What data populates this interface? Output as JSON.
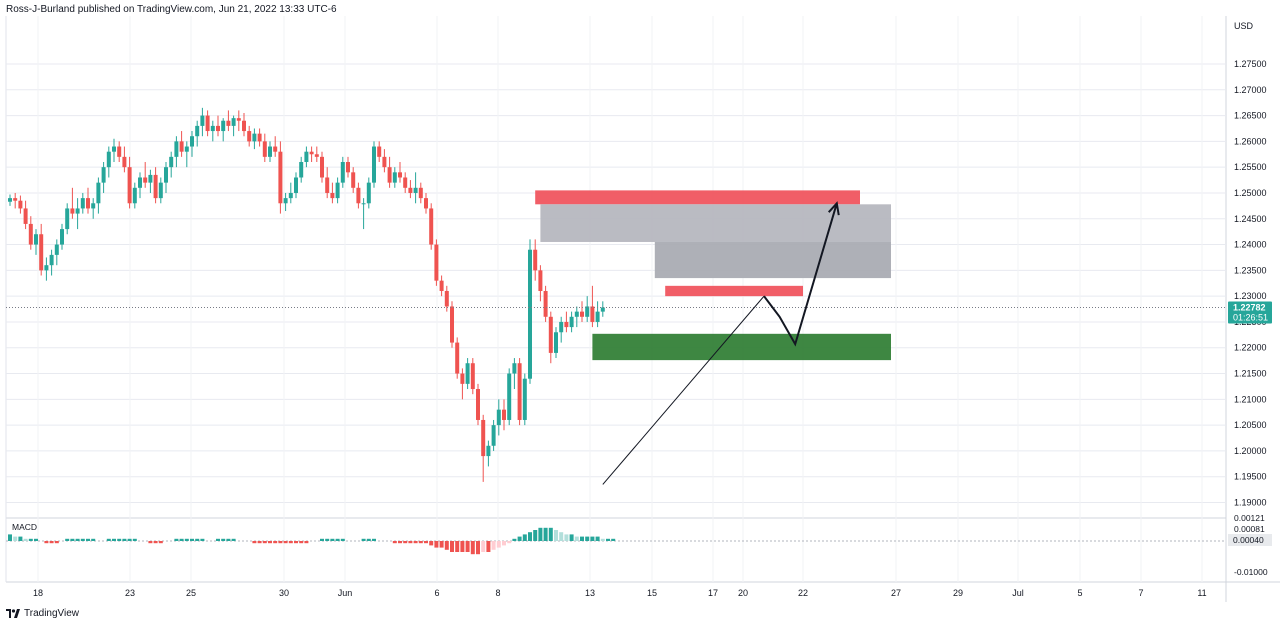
{
  "header": {
    "attribution": "Ross-J-Burland published on TradingView.com, Jun 21, 2022 13:33 UTC-6"
  },
  "footer": {
    "brand": "TradingView"
  },
  "colors": {
    "up": "#26a69a",
    "down": "#ef5350",
    "grid": "#e8eaf0",
    "resistance": "#f0505a",
    "supply": "#9a9ca6",
    "demand": "#2e7d32",
    "macd_up": "#26a69a",
    "macd_up_light": "#b2dfdb",
    "macd_down": "#ef5350",
    "macd_down_light": "#ffcdd2"
  },
  "chart_data": {
    "type": "candlestick",
    "currency": "USD",
    "price_axis_ticks": [
      "1.27500",
      "1.27000",
      "1.26500",
      "1.26000",
      "1.25500",
      "1.25000",
      "1.24500",
      "1.24000",
      "1.23500",
      "1.23000",
      "1.22500",
      "1.22000",
      "1.21500",
      "1.21000",
      "1.20500",
      "1.20000",
      "1.19500",
      "1.19000"
    ],
    "ylim": [
      1.187,
      1.2843
    ],
    "current_price": "1.22782",
    "countdown": "01:26:51",
    "date_ticks": [
      "18",
      "23",
      "25",
      "30",
      "Jun",
      "6",
      "8",
      "13",
      "15",
      "17",
      "20",
      "22",
      "27",
      "29",
      "Jul",
      "5",
      "7",
      "11"
    ],
    "candles": [
      [
        1.2483,
        1.2497,
        1.2475,
        1.249
      ],
      [
        1.249,
        1.25,
        1.247,
        1.2485
      ],
      [
        1.2485,
        1.2495,
        1.246,
        1.247
      ],
      [
        1.247,
        1.2485,
        1.243,
        1.244
      ],
      [
        1.244,
        1.2455,
        1.239,
        1.24
      ],
      [
        1.24,
        1.243,
        1.238,
        1.242
      ],
      [
        1.242,
        1.244,
        1.234,
        1.235
      ],
      [
        1.235,
        1.2375,
        1.233,
        1.236
      ],
      [
        1.236,
        1.239,
        1.234,
        1.238
      ],
      [
        1.238,
        1.241,
        1.236,
        1.24
      ],
      [
        1.24,
        1.244,
        1.239,
        1.243
      ],
      [
        1.243,
        1.248,
        1.242,
        1.247
      ],
      [
        1.247,
        1.251,
        1.245,
        1.246
      ],
      [
        1.246,
        1.249,
        1.243,
        1.247
      ],
      [
        1.247,
        1.25,
        1.246,
        1.249
      ],
      [
        1.249,
        1.251,
        1.246,
        1.247
      ],
      [
        1.247,
        1.249,
        1.245,
        1.248
      ],
      [
        1.248,
        1.253,
        1.246,
        1.252
      ],
      [
        1.252,
        1.256,
        1.25,
        1.255
      ],
      [
        1.255,
        1.259,
        1.253,
        1.258
      ],
      [
        1.258,
        1.2605,
        1.256,
        1.259
      ],
      [
        1.259,
        1.26,
        1.256,
        1.257
      ],
      [
        1.257,
        1.259,
        1.254,
        1.255
      ],
      [
        1.255,
        1.257,
        1.247,
        1.248
      ],
      [
        1.248,
        1.252,
        1.247,
        1.251
      ],
      [
        1.251,
        1.254,
        1.249,
        1.253
      ],
      [
        1.253,
        1.256,
        1.251,
        1.252
      ],
      [
        1.252,
        1.2545,
        1.25,
        1.2535
      ],
      [
        1.2535,
        1.255,
        1.248,
        1.249
      ],
      [
        1.249,
        1.253,
        1.248,
        1.252
      ],
      [
        1.252,
        1.256,
        1.25,
        1.255
      ],
      [
        1.255,
        1.258,
        1.253,
        1.257
      ],
      [
        1.257,
        1.261,
        1.255,
        1.26
      ],
      [
        1.26,
        1.262,
        1.257,
        1.258
      ],
      [
        1.258,
        1.26,
        1.255,
        1.259
      ],
      [
        1.259,
        1.262,
        1.257,
        1.261
      ],
      [
        1.261,
        1.264,
        1.259,
        1.263
      ],
      [
        1.263,
        1.2665,
        1.261,
        1.265
      ],
      [
        1.265,
        1.266,
        1.261,
        1.262
      ],
      [
        1.262,
        1.264,
        1.26,
        1.263
      ],
      [
        1.263,
        1.265,
        1.261,
        1.262
      ],
      [
        1.262,
        1.2645,
        1.26,
        1.264
      ],
      [
        1.264,
        1.266,
        1.262,
        1.263
      ],
      [
        1.263,
        1.265,
        1.261,
        1.2645
      ],
      [
        1.2645,
        1.266,
        1.262,
        1.264
      ],
      [
        1.264,
        1.2655,
        1.261,
        1.262
      ],
      [
        1.262,
        1.263,
        1.259,
        1.26
      ],
      [
        1.26,
        1.2625,
        1.2585,
        1.2615
      ],
      [
        1.2615,
        1.2625,
        1.259,
        1.26
      ],
      [
        1.26,
        1.2615,
        1.256,
        1.257
      ],
      [
        1.257,
        1.26,
        1.256,
        1.259
      ],
      [
        1.259,
        1.261,
        1.257,
        1.258
      ],
      [
        1.258,
        1.26,
        1.246,
        1.248
      ],
      [
        1.248,
        1.25,
        1.2465,
        1.249
      ],
      [
        1.249,
        1.252,
        1.248,
        1.25
      ],
      [
        1.25,
        1.254,
        1.249,
        1.253
      ],
      [
        1.253,
        1.257,
        1.252,
        1.256
      ],
      [
        1.256,
        1.259,
        1.255,
        1.258
      ],
      [
        1.258,
        1.259,
        1.256,
        1.2575
      ],
      [
        1.2575,
        1.259,
        1.256,
        1.257
      ],
      [
        1.257,
        1.258,
        1.252,
        1.253
      ],
      [
        1.253,
        1.255,
        1.249,
        1.25
      ],
      [
        1.25,
        1.252,
        1.248,
        1.249
      ],
      [
        1.249,
        1.253,
        1.248,
        1.252
      ],
      [
        1.252,
        1.257,
        1.251,
        1.256
      ],
      [
        1.256,
        1.257,
        1.253,
        1.254
      ],
      [
        1.254,
        1.255,
        1.25,
        1.251
      ],
      [
        1.251,
        1.252,
        1.247,
        1.248
      ],
      [
        1.248,
        1.249,
        1.243,
        1.248
      ],
      [
        1.248,
        1.253,
        1.247,
        1.252
      ],
      [
        1.252,
        1.26,
        1.251,
        1.259
      ],
      [
        1.259,
        1.26,
        1.256,
        1.257
      ],
      [
        1.257,
        1.2585,
        1.254,
        1.255
      ],
      [
        1.255,
        1.257,
        1.251,
        1.252
      ],
      [
        1.252,
        1.255,
        1.251,
        1.254
      ],
      [
        1.254,
        1.256,
        1.252,
        1.253
      ],
      [
        1.253,
        1.254,
        1.25,
        1.251
      ],
      [
        1.251,
        1.2525,
        1.249,
        1.25
      ],
      [
        1.25,
        1.254,
        1.248,
        1.251
      ],
      [
        1.251,
        1.252,
        1.248,
        1.249
      ],
      [
        1.249,
        1.25,
        1.246,
        1.247
      ],
      [
        1.247,
        1.248,
        1.239,
        1.24
      ],
      [
        1.24,
        1.241,
        1.232,
        1.233
      ],
      [
        1.233,
        1.234,
        1.23,
        1.231
      ],
      [
        1.231,
        1.232,
        1.227,
        1.228
      ],
      [
        1.228,
        1.229,
        1.22,
        1.221
      ],
      [
        1.221,
        1.222,
        1.214,
        1.215
      ],
      [
        1.215,
        1.216,
        1.21,
        1.213
      ],
      [
        1.213,
        1.218,
        1.212,
        1.217
      ],
      [
        1.217,
        1.218,
        1.211,
        1.212
      ],
      [
        1.212,
        1.213,
        1.205,
        1.206
      ],
      [
        1.206,
        1.207,
        1.194,
        1.199
      ],
      [
        1.199,
        1.202,
        1.197,
        1.201
      ],
      [
        1.201,
        1.206,
        1.2,
        1.205
      ],
      [
        1.205,
        1.21,
        1.203,
        1.208
      ],
      [
        1.208,
        1.21,
        1.204,
        1.206
      ],
      [
        1.206,
        1.216,
        1.205,
        1.215
      ],
      [
        1.215,
        1.218,
        1.212,
        1.217
      ],
      [
        1.217,
        1.218,
        1.205,
        1.206
      ],
      [
        1.206,
        1.215,
        1.205,
        1.214
      ],
      [
        1.214,
        1.241,
        1.213,
        1.239
      ],
      [
        1.239,
        1.241,
        1.233,
        1.235
      ],
      [
        1.235,
        1.236,
        1.229,
        1.231
      ],
      [
        1.231,
        1.232,
        1.225,
        1.226
      ],
      [
        1.226,
        1.227,
        1.217,
        1.219
      ],
      [
        1.219,
        1.224,
        1.218,
        1.223
      ],
      [
        1.223,
        1.226,
        1.221,
        1.225
      ],
      [
        1.225,
        1.227,
        1.223,
        1.224
      ],
      [
        1.224,
        1.227,
        1.223,
        1.226
      ],
      [
        1.226,
        1.228,
        1.224,
        1.227
      ],
      [
        1.227,
        1.229,
        1.225,
        1.226
      ],
      [
        1.226,
        1.23,
        1.225,
        1.228
      ],
      [
        1.228,
        1.232,
        1.224,
        1.225
      ],
      [
        1.225,
        1.229,
        1.224,
        1.227
      ],
      [
        1.227,
        1.229,
        1.226,
        1.2278
      ]
    ],
    "zones": [
      {
        "name": "resistance-zone-upper",
        "start_index": 101,
        "end_label": "27",
        "top": 1.2505,
        "bottom": 1.2478,
        "color": "#f0505a"
      },
      {
        "name": "supply-zone-left",
        "start_index": 102,
        "end_label": "27",
        "top": 1.2478,
        "bottom": 1.2405,
        "color": "#b4b5bd"
      },
      {
        "name": "supply-zone-right",
        "start_index": 124,
        "end_label": "27",
        "top": 1.2405,
        "bottom": 1.2335,
        "color": "#a7a9b1"
      },
      {
        "name": "resistance-zone-lower",
        "start_index": 126,
        "end_label": "22",
        "top": 1.232,
        "bottom": 1.23,
        "color": "#f0505a"
      },
      {
        "name": "demand-zone",
        "start_index": 112,
        "end_label": "27",
        "top": 1.2227,
        "bottom": 1.2176,
        "color": "#2e7d32"
      }
    ],
    "trendline": {
      "from": {
        "index": 114,
        "price": 1.1935
      },
      "to": {
        "index": 145,
        "price": 1.23
      }
    },
    "projection_path": [
      {
        "index": 145,
        "price": 1.23
      },
      {
        "index": 148,
        "price": 1.226
      },
      {
        "index": 151,
        "price": 1.2207
      },
      {
        "index": 159,
        "price": 1.248
      }
    ],
    "macd": {
      "label": "MACD",
      "ticks": [
        "0.00121",
        "0.00081",
        "0.00040",
        "-0.01000"
      ],
      "current_value": "0.00040",
      "histogram": [
        3,
        2,
        2,
        1,
        1,
        1,
        0,
        -1,
        -1,
        -1,
        0,
        1,
        1,
        1,
        1,
        1,
        1,
        0,
        0,
        1,
        1,
        1,
        1,
        1,
        1,
        0,
        0,
        -1,
        -1,
        -1,
        0,
        0,
        1,
        1,
        1,
        1,
        1,
        1,
        0,
        0,
        1,
        1,
        1,
        1,
        0,
        0,
        0,
        -1,
        -1,
        -1,
        -1,
        -1,
        -1,
        -1,
        -1,
        -1,
        -1,
        -1,
        0,
        0,
        1,
        1,
        1,
        1,
        1,
        0,
        0,
        0,
        1,
        1,
        1,
        0,
        0,
        0,
        -1,
        -1,
        -1,
        -1,
        -1,
        -1,
        -1,
        -2,
        -3,
        -3,
        -4,
        -5,
        -5,
        -5,
        -5,
        -6,
        -6,
        -5,
        -5,
        -4,
        -3,
        -2,
        -1,
        1,
        2,
        3,
        4,
        5,
        6,
        6,
        6,
        5,
        4,
        3,
        3,
        2,
        2,
        2,
        2,
        2,
        1,
        1,
        1,
        0
      ]
    }
  }
}
